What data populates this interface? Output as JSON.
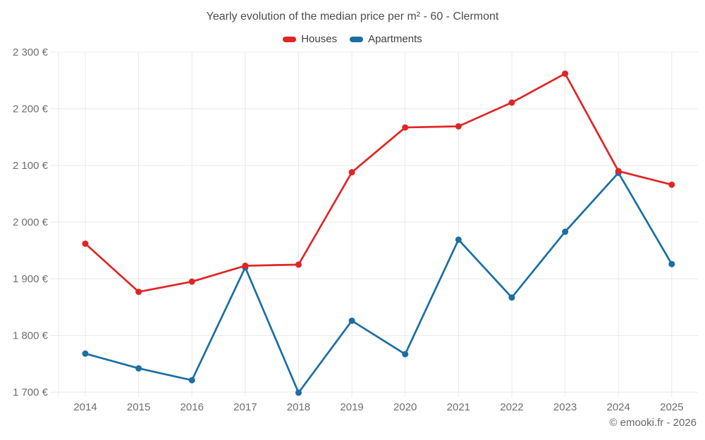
{
  "copyright": "© emooki.fr - 2026",
  "chart_data": {
    "type": "line",
    "title": "Yearly evolution of the median price per m² - 60 - Clermont",
    "x": [
      2014,
      2015,
      2016,
      2017,
      2018,
      2019,
      2020,
      2021,
      2022,
      2023,
      2024,
      2025
    ],
    "series": [
      {
        "name": "Houses",
        "color": "#e02525",
        "values": [
          1962,
          1877,
          1895,
          1923,
          1925,
          2088,
          2167,
          2169,
          2211,
          2262,
          2090,
          2066
        ]
      },
      {
        "name": "Apartments",
        "color": "#1a6fa3",
        "values": [
          1768,
          1742,
          1721,
          1920,
          1699,
          1826,
          1767,
          1969,
          1867,
          1983,
          2087,
          1926
        ]
      }
    ],
    "xlabel": "",
    "ylabel": "",
    "ylim": [
      1700,
      2300
    ],
    "grid": true,
    "legend_position": "top",
    "y_ticks": [
      {
        "value": 1700,
        "label": "1 700 €"
      },
      {
        "value": 1800,
        "label": "1 800 €"
      },
      {
        "value": 1900,
        "label": "1 900 €"
      },
      {
        "value": 2000,
        "label": "2 000 €"
      },
      {
        "value": 2100,
        "label": "2 100 €"
      },
      {
        "value": 2200,
        "label": "2 200 €"
      },
      {
        "value": 2300,
        "label": "2 300 €"
      }
    ]
  }
}
